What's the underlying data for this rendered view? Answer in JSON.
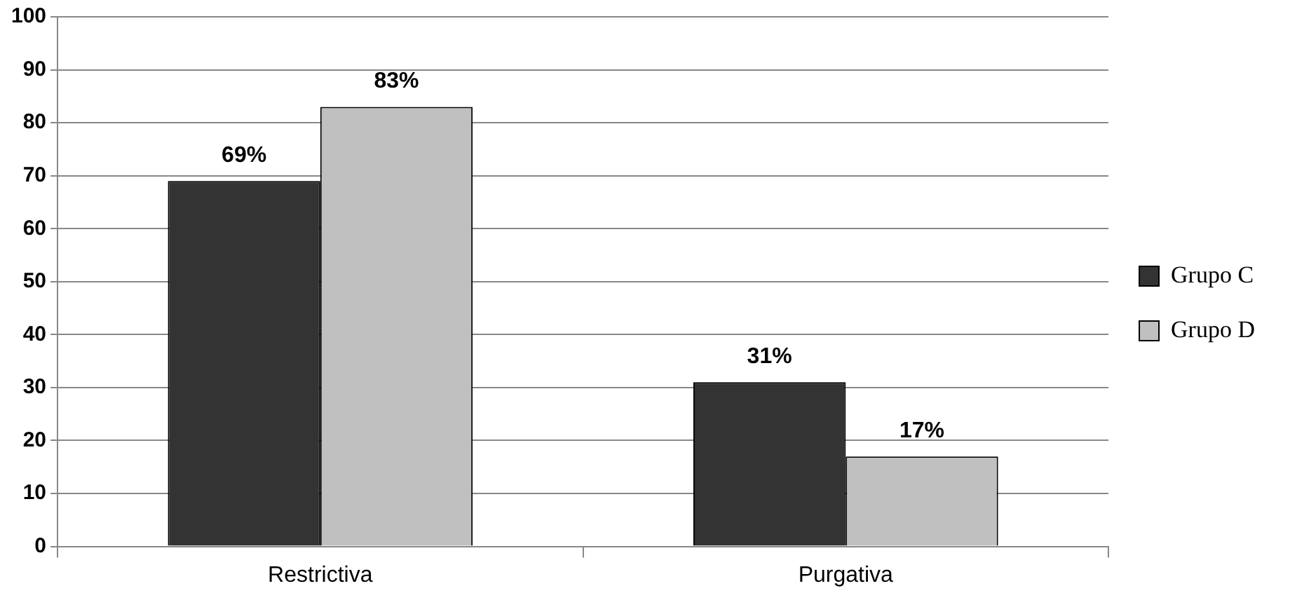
{
  "chart_data": {
    "type": "bar",
    "categories": [
      "Restrictiva",
      "Purgativa"
    ],
    "series": [
      {
        "name": "Grupo C",
        "color": "#333333",
        "values": [
          69,
          31
        ],
        "value_labels": [
          "69%",
          "31%"
        ]
      },
      {
        "name": "Grupo D",
        "color": "#c0c0c0",
        "values": [
          83,
          17
        ],
        "value_labels": [
          "83%",
          "17%"
        ]
      }
    ],
    "ylim": [
      0,
      100
    ],
    "yticks": [
      0,
      10,
      20,
      30,
      40,
      50,
      60,
      70,
      80,
      90,
      100
    ],
    "grid": "y",
    "legend": "right"
  }
}
